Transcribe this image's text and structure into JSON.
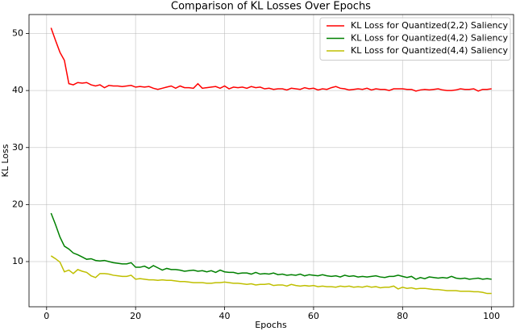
{
  "chart_data": {
    "type": "line",
    "title": "Comparison of KL Losses Over Epochs",
    "x_label": "Epochs",
    "y_label": "KL Loss",
    "x": [
      1,
      2,
      3,
      4,
      5,
      6,
      7,
      8,
      9,
      10,
      11,
      12,
      13,
      14,
      15,
      16,
      17,
      18,
      19,
      20,
      21,
      22,
      23,
      24,
      25,
      26,
      27,
      28,
      29,
      30,
      31,
      32,
      33,
      34,
      35,
      36,
      37,
      38,
      39,
      40,
      41,
      42,
      43,
      44,
      45,
      46,
      47,
      48,
      49,
      50,
      51,
      52,
      53,
      54,
      55,
      56,
      57,
      58,
      59,
      60,
      61,
      62,
      63,
      64,
      65,
      66,
      67,
      68,
      69,
      70,
      71,
      72,
      73,
      74,
      75,
      76,
      77,
      78,
      79,
      80,
      81,
      82,
      83,
      84,
      85,
      86,
      87,
      88,
      89,
      90,
      91,
      92,
      93,
      94,
      95,
      96,
      97,
      98,
      99,
      100
    ],
    "series": [
      {
        "name": "KL Loss for Quantized(2,2) Saliency",
        "color": "#ff0000",
        "values": [
          51.0,
          48.8,
          46.7,
          45.3,
          41.2,
          41.0,
          41.4,
          41.3,
          41.4,
          41.0,
          40.8,
          41.0,
          40.5,
          40.9,
          40.8,
          40.8,
          40.7,
          40.8,
          40.9,
          40.6,
          40.7,
          40.6,
          40.7,
          40.4,
          40.2,
          40.4,
          40.6,
          40.8,
          40.4,
          40.8,
          40.5,
          40.5,
          40.4,
          41.2,
          40.4,
          40.5,
          40.6,
          40.7,
          40.4,
          40.8,
          40.3,
          40.6,
          40.5,
          40.6,
          40.4,
          40.7,
          40.5,
          40.6,
          40.3,
          40.4,
          40.2,
          40.3,
          40.3,
          40.1,
          40.4,
          40.3,
          40.2,
          40.5,
          40.3,
          40.4,
          40.1,
          40.3,
          40.2,
          40.5,
          40.7,
          40.4,
          40.3,
          40.1,
          40.2,
          40.3,
          40.2,
          40.4,
          40.1,
          40.3,
          40.2,
          40.2,
          40.0,
          40.3,
          40.3,
          40.3,
          40.2,
          40.2,
          39.9,
          40.1,
          40.2,
          40.1,
          40.2,
          40.3,
          40.1,
          40.0,
          40.0,
          40.1,
          40.3,
          40.2,
          40.2,
          40.3,
          39.9,
          40.2,
          40.2,
          40.3
        ]
      },
      {
        "name": "KL Loss for Quantized(4,2) Saliency",
        "color": "#008000",
        "values": [
          18.5,
          16.5,
          14.3,
          12.7,
          12.2,
          11.5,
          11.2,
          10.8,
          10.4,
          10.5,
          10.2,
          10.1,
          10.2,
          10.0,
          9.8,
          9.7,
          9.6,
          9.6,
          9.8,
          9.0,
          9.0,
          9.2,
          8.8,
          9.3,
          8.9,
          8.5,
          8.8,
          8.6,
          8.6,
          8.5,
          8.3,
          8.4,
          8.5,
          8.3,
          8.4,
          8.2,
          8.4,
          8.1,
          8.5,
          8.2,
          8.1,
          8.1,
          7.9,
          8.0,
          8.0,
          7.8,
          8.1,
          7.8,
          7.9,
          7.8,
          8.0,
          7.7,
          7.8,
          7.6,
          7.7,
          7.6,
          7.8,
          7.5,
          7.7,
          7.6,
          7.5,
          7.7,
          7.5,
          7.4,
          7.5,
          7.3,
          7.6,
          7.4,
          7.5,
          7.3,
          7.4,
          7.3,
          7.4,
          7.5,
          7.3,
          7.2,
          7.4,
          7.4,
          7.6,
          7.4,
          7.2,
          7.4,
          6.9,
          7.2,
          7.0,
          7.3,
          7.2,
          7.1,
          7.2,
          7.1,
          7.4,
          7.1,
          7.0,
          7.1,
          6.9,
          7.0,
          7.1,
          6.9,
          7.0,
          6.9
        ]
      },
      {
        "name": "KL Loss for Quantized(4,4) Saliency",
        "color": "#bfbf00",
        "values": [
          11.0,
          10.5,
          9.9,
          8.2,
          8.5,
          7.9,
          8.6,
          8.3,
          8.1,
          7.5,
          7.2,
          7.9,
          7.9,
          7.8,
          7.6,
          7.5,
          7.4,
          7.4,
          7.6,
          6.9,
          7.0,
          6.9,
          6.8,
          6.8,
          6.7,
          6.8,
          6.7,
          6.7,
          6.6,
          6.5,
          6.5,
          6.4,
          6.3,
          6.3,
          6.3,
          6.2,
          6.2,
          6.3,
          6.3,
          6.4,
          6.3,
          6.2,
          6.2,
          6.1,
          6.0,
          6.1,
          5.9,
          6.0,
          6.0,
          6.1,
          5.8,
          5.9,
          5.9,
          5.7,
          6.0,
          5.8,
          5.7,
          5.8,
          5.7,
          5.8,
          5.6,
          5.7,
          5.6,
          5.6,
          5.5,
          5.7,
          5.6,
          5.7,
          5.5,
          5.6,
          5.5,
          5.7,
          5.5,
          5.6,
          5.4,
          5.5,
          5.5,
          5.7,
          5.2,
          5.5,
          5.3,
          5.4,
          5.2,
          5.3,
          5.3,
          5.2,
          5.1,
          5.1,
          5.0,
          4.9,
          4.9,
          4.9,
          4.8,
          4.8,
          4.8,
          4.7,
          4.7,
          4.6,
          4.4,
          4.4
        ]
      }
    ],
    "xlim": [
      -3.95,
      104.95
    ],
    "ylim": [
      2.07,
      53.33
    ],
    "xticks": [
      0,
      20,
      40,
      60,
      80,
      100
    ],
    "yticks": [
      10,
      20,
      30,
      40,
      50
    ],
    "grid": true,
    "legend": "upper-right"
  }
}
